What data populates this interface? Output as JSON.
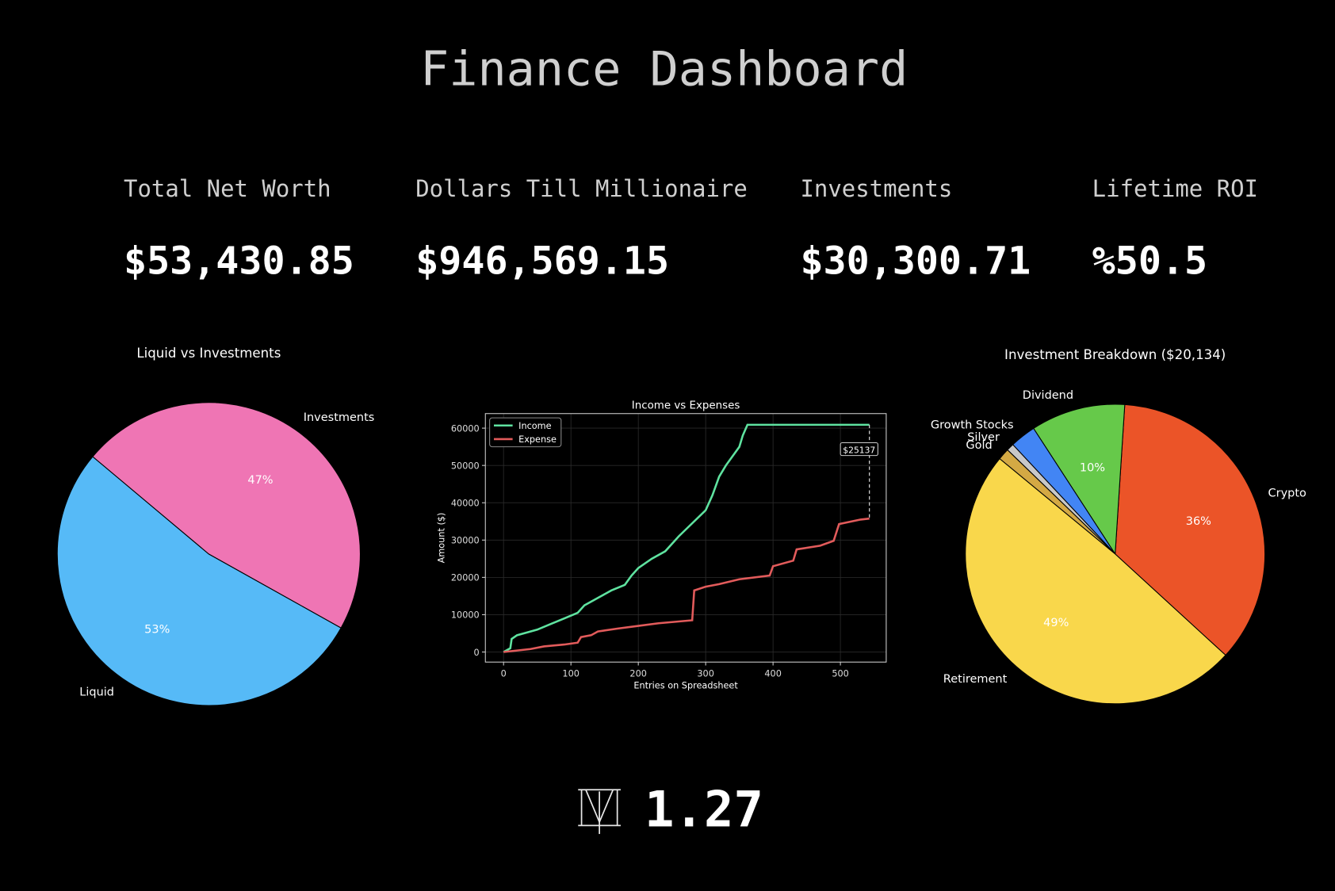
{
  "title": "Finance Dashboard",
  "stats": [
    {
      "label": "Total Net Worth",
      "value": "$53,430.85"
    },
    {
      "label": "Dollars Till Millionaire",
      "value": "$946,569.15"
    },
    {
      "label": "Investments",
      "value": "$30,300.71"
    },
    {
      "label": "Lifetime ROI",
      "value": "%50.5"
    }
  ],
  "chart_data": [
    {
      "type": "pie",
      "title": "Liquid vs Investments",
      "categories": [
        "Liquid",
        "Investments"
      ],
      "values": [
        53,
        47
      ],
      "value_labels": [
        "53%",
        "47%"
      ],
      "colors": [
        "#56baf7",
        "#ef75b4"
      ]
    },
    {
      "type": "line",
      "title": "Income vs Expenses",
      "x_label": "Entries on Spreadsheet",
      "y_label": "Amount ($)",
      "series": [
        {
          "name": "Income",
          "color": "#5fe3a0",
          "x": [
            0,
            10,
            12,
            20,
            30,
            50,
            70,
            90,
            110,
            120,
            140,
            160,
            180,
            190,
            200,
            220,
            240,
            260,
            280,
            300,
            310,
            320,
            330,
            350,
            355,
            362,
            543
          ],
          "values": [
            0,
            1000,
            3500,
            4500,
            5000,
            6000,
            7500,
            9000,
            10500,
            12500,
            14500,
            16500,
            18000,
            20500,
            22500,
            25000,
            27000,
            31000,
            34500,
            38000,
            42000,
            47000,
            50000,
            55000,
            58000,
            60900,
            60900
          ]
        },
        {
          "name": "Expense",
          "color": "#e25b5b",
          "x": [
            0,
            40,
            60,
            90,
            110,
            115,
            130,
            140,
            170,
            200,
            230,
            280,
            283,
            300,
            320,
            350,
            395,
            400,
            430,
            435,
            470,
            490,
            498,
            530,
            543
          ],
          "values": [
            0,
            800,
            1500,
            2000,
            2500,
            4000,
            4500,
            5500,
            6300,
            7000,
            7700,
            8500,
            16500,
            17500,
            18200,
            19500,
            20500,
            23000,
            24500,
            27500,
            28500,
            29800,
            34300,
            35500,
            35763
          ]
        }
      ],
      "annotation": "$25137",
      "xlim": [
        -27,
        568
      ],
      "ylim": [
        -2700,
        63900
      ],
      "xticks": [
        0,
        100,
        200,
        300,
        400,
        500
      ],
      "yticks": [
        0,
        10000,
        20000,
        30000,
        40000,
        50000,
        60000
      ],
      "grid": true,
      "legend": "upper-left"
    },
    {
      "type": "pie",
      "title": "Investment Breakdown ($20,134)",
      "categories": [
        "Crypto",
        "Dividend",
        "Growth Stocks",
        "Silver",
        "Gold",
        "Retirement"
      ],
      "values": [
        35.8,
        10.2,
        2.8,
        0.8,
        1.25,
        49.2
      ],
      "value_labels": [
        "36%",
        "10%",
        null,
        null,
        null,
        "49%"
      ],
      "colors": [
        "#eb5428",
        "#66c94a",
        "#4285f4",
        "#c8c8c8",
        "#d4a944",
        "#f9d74b"
      ]
    }
  ],
  "footer": {
    "version": "1.27"
  }
}
